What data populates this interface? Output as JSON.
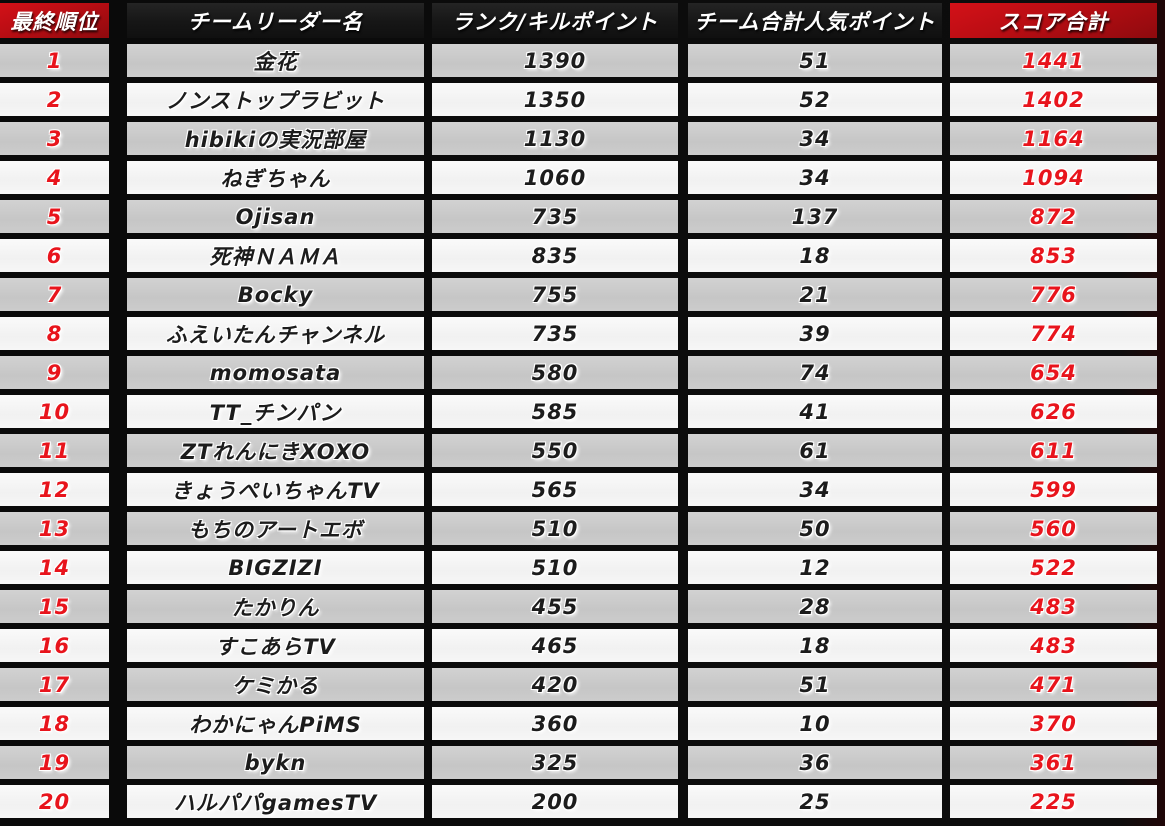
{
  "table": {
    "headers": [
      {
        "label": "最終順位"
      },
      {
        "label": "チームリーダー名"
      },
      {
        "label": "ランク/キルポイント"
      },
      {
        "label": "チーム合計人気ポイント"
      },
      {
        "label": "スコア合計"
      }
    ],
    "rows": [
      {
        "rank": "1",
        "leader": "金花",
        "points": "1390",
        "popularity": "51",
        "total": "1441"
      },
      {
        "rank": "2",
        "leader": "ノンストップラビット",
        "points": "1350",
        "popularity": "52",
        "total": "1402"
      },
      {
        "rank": "3",
        "leader": "hibikiの実況部屋",
        "points": "1130",
        "popularity": "34",
        "total": "1164"
      },
      {
        "rank": "4",
        "leader": "ねぎちゃん",
        "points": "1060",
        "popularity": "34",
        "total": "1094"
      },
      {
        "rank": "5",
        "leader": "Ojisan",
        "points": "735",
        "popularity": "137",
        "total": "872"
      },
      {
        "rank": "6",
        "leader": "死神ＮＡＭＡ",
        "points": "835",
        "popularity": "18",
        "total": "853"
      },
      {
        "rank": "7",
        "leader": "Bocky",
        "points": "755",
        "popularity": "21",
        "total": "776"
      },
      {
        "rank": "8",
        "leader": "ふえいたんチャンネル",
        "points": "735",
        "popularity": "39",
        "total": "774"
      },
      {
        "rank": "9",
        "leader": "momosata",
        "points": "580",
        "popularity": "74",
        "total": "654"
      },
      {
        "rank": "10",
        "leader": "TT_チンパン",
        "points": "585",
        "popularity": "41",
        "total": "626"
      },
      {
        "rank": "11",
        "leader": "ZTれんにきXOXO",
        "points": "550",
        "popularity": "61",
        "total": "611"
      },
      {
        "rank": "12",
        "leader": "きょうぺいちゃんTV",
        "points": "565",
        "popularity": "34",
        "total": "599"
      },
      {
        "rank": "13",
        "leader": "もちのアートエボ",
        "points": "510",
        "popularity": "50",
        "total": "560"
      },
      {
        "rank": "14",
        "leader": "BIGZIZI",
        "points": "510",
        "popularity": "12",
        "total": "522"
      },
      {
        "rank": "15",
        "leader": "たかりん",
        "points": "455",
        "popularity": "28",
        "total": "483"
      },
      {
        "rank": "16",
        "leader": "すこあらTV",
        "points": "465",
        "popularity": "18",
        "total": "483"
      },
      {
        "rank": "17",
        "leader": "ケミかる",
        "points": "420",
        "popularity": "51",
        "total": "471"
      },
      {
        "rank": "18",
        "leader": "わかにゃんPiMS",
        "points": "360",
        "popularity": "10",
        "total": "370"
      },
      {
        "rank": "19",
        "leader": "bykn",
        "points": "325",
        "popularity": "36",
        "total": "361"
      },
      {
        "rank": "20",
        "leader": "ハルパパgamesTV",
        "points": "200",
        "popularity": "25",
        "total": "225"
      }
    ]
  },
  "colors": {
    "header_red": "#b80d13",
    "header_dark": "#161616",
    "accent_red_text": "#e8141c",
    "row_gray": "#c8c8c8",
    "row_white": "#f5f5f5",
    "grid_black": "#0a0a0a"
  }
}
